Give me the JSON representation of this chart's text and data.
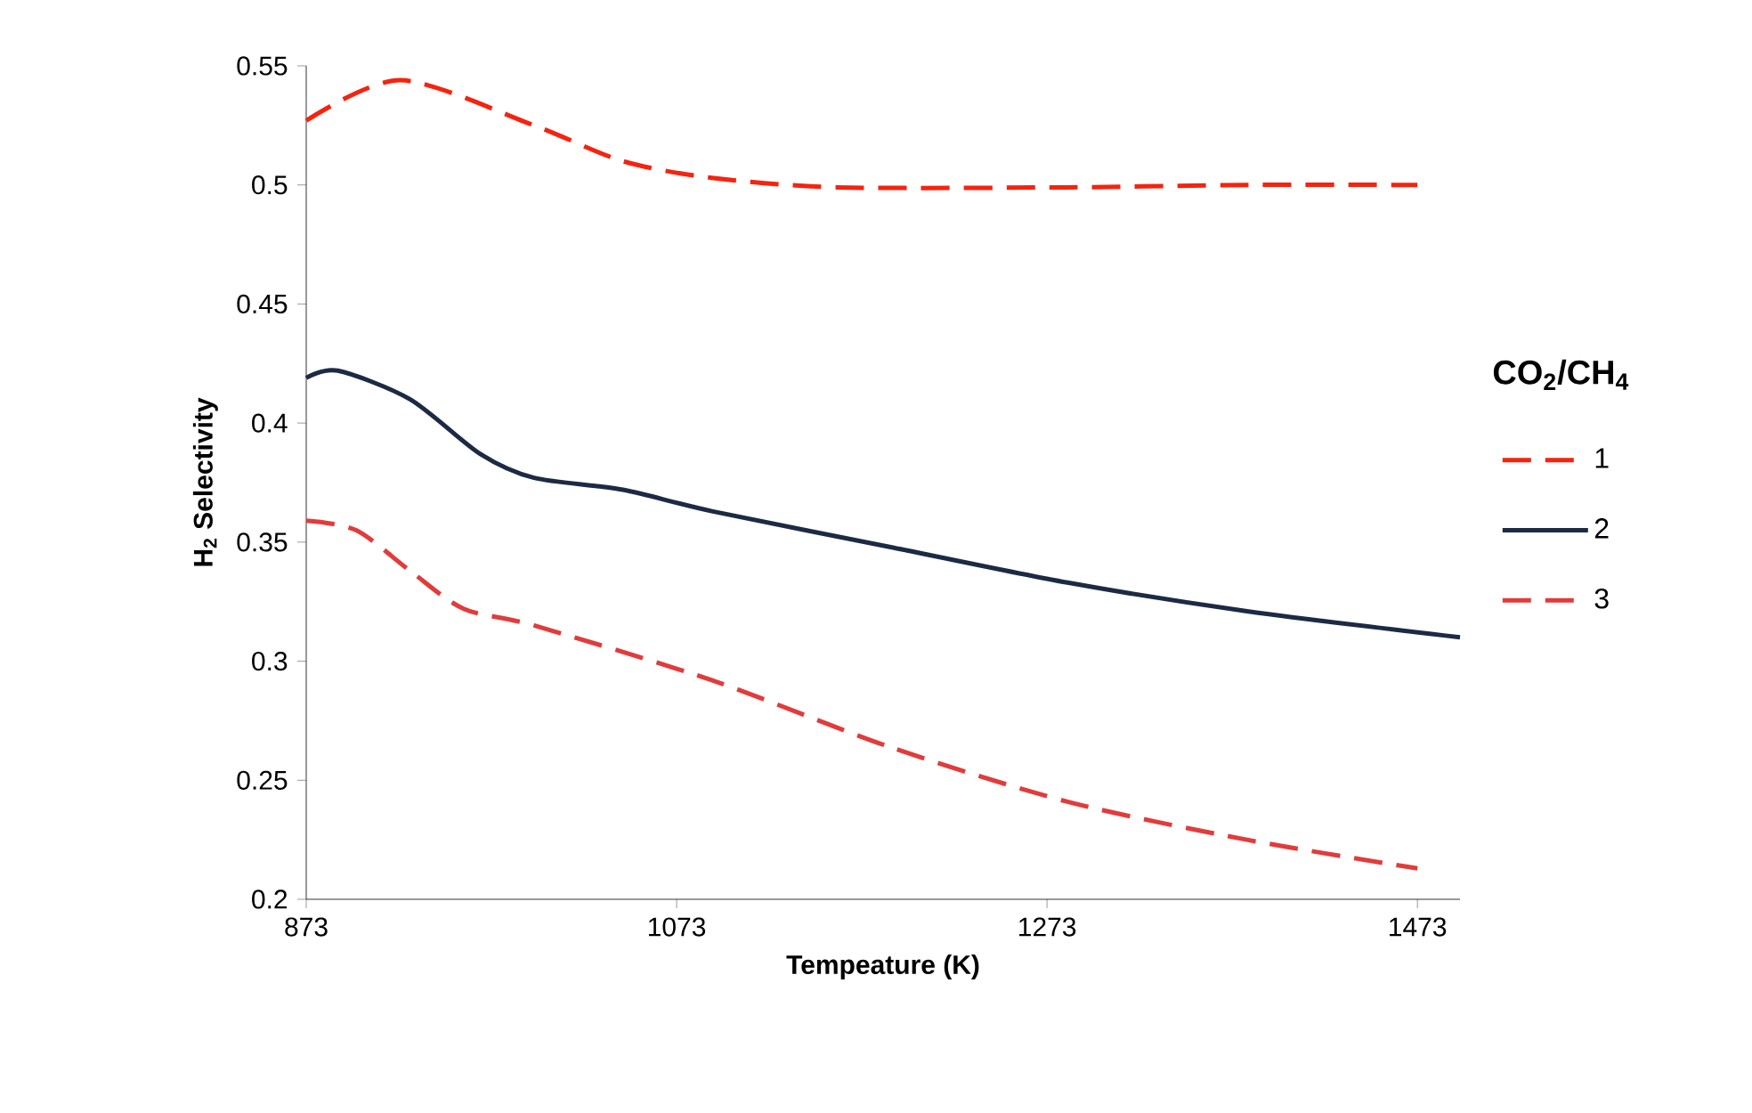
{
  "chart_data": {
    "type": "line",
    "xlabel": "Tempeature (K)",
    "ylabel": "H$_{2}$ Selectivity",
    "legend_title": "CO$_{2}$/CH$_{4}$",
    "legend": "right",
    "grid": false,
    "xlim": [
      873,
      1496
    ],
    "ylim": [
      0.2,
      0.55
    ],
    "xticks": [
      873,
      1073,
      1273,
      1473
    ],
    "yticks": [
      {
        "value": 0.2,
        "label": "0.2"
      },
      {
        "value": 0.25,
        "label": "0.25"
      },
      {
        "value": 0.3,
        "label": "0.3"
      },
      {
        "value": 0.35,
        "label": "0.35"
      },
      {
        "value": 0.4,
        "label": "0.4"
      },
      {
        "value": 0.45,
        "label": "0.45"
      },
      {
        "value": 0.5,
        "label": "0.5"
      },
      {
        "value": 0.55,
        "label": "0.55"
      }
    ],
    "series": [
      {
        "name": "1",
        "color": "#f5230f",
        "line_style": "dashed",
        "x": [
          873,
          924,
          996,
          1044,
          1092,
          1160,
          1284,
          1381,
          1473
        ],
        "values": [
          0.527,
          0.544,
          0.525,
          0.51,
          0.503,
          0.499,
          0.499,
          0.5,
          0.5
        ]
      },
      {
        "name": "2",
        "color": "#1c2a44",
        "line_style": "solid",
        "x": [
          873,
          890,
          929,
          967,
          996,
          1044,
          1092,
          1188,
          1284,
          1381,
          1496
        ],
        "values": [
          0.419,
          0.422,
          0.41,
          0.387,
          0.377,
          0.372,
          0.363,
          0.348,
          0.333,
          0.321,
          0.31
        ]
      },
      {
        "name": "3",
        "color": "#e23b3b",
        "line_style": "dashed",
        "x": [
          873,
          900,
          929,
          958,
          996,
          1092,
          1188,
          1284,
          1381,
          1473
        ],
        "values": [
          0.359,
          0.355,
          0.338,
          0.322,
          0.315,
          0.292,
          0.264,
          0.241,
          0.225,
          0.213
        ]
      }
    ]
  }
}
